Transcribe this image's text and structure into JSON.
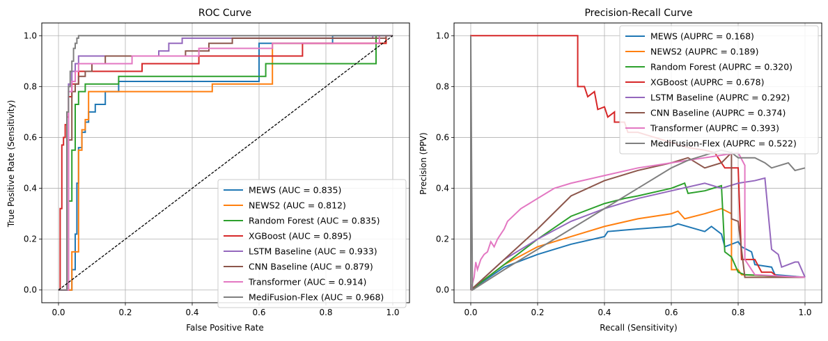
{
  "chart_data": [
    {
      "type": "line",
      "title": "ROC Curve",
      "xlabel": "False Positive Rate",
      "ylabel": "True Positive Rate (Sensitivity)",
      "xlim": [
        -0.05,
        1.05
      ],
      "ylim": [
        -0.05,
        1.05
      ],
      "xticks": [
        "0.0",
        "0.2",
        "0.4",
        "0.6",
        "0.8",
        "1.0"
      ],
      "yticks": [
        "0.0",
        "0.2",
        "0.4",
        "0.6",
        "0.8",
        "1.0"
      ],
      "grid": true,
      "legend_position": "lower-right",
      "reference_line": {
        "x": [
          0,
          1
        ],
        "y": [
          0,
          1
        ],
        "color": "#000000",
        "style": "dashed"
      },
      "series": [
        {
          "name": "MEWS (AUC = 0.835)",
          "color": "#1f77b4",
          "x": [
            0,
            0.04,
            0.04,
            0.05,
            0.05,
            0.055,
            0.055,
            0.06,
            0.06,
            0.07,
            0.07,
            0.08,
            0.08,
            0.09,
            0.09,
            0.11,
            0.11,
            0.14,
            0.14,
            0.18,
            0.18,
            0.6,
            0.6,
            0.82,
            0.82,
            1.0
          ],
          "y": [
            0,
            0,
            0.08,
            0.08,
            0.22,
            0.22,
            0.42,
            0.42,
            0.56,
            0.56,
            0.62,
            0.62,
            0.66,
            0.66,
            0.7,
            0.7,
            0.73,
            0.73,
            0.78,
            0.78,
            0.82,
            0.82,
            0.97,
            0.97,
            1.0,
            1.0
          ]
        },
        {
          "name": "NEWS2 (AUC = 0.812)",
          "color": "#ff7f0e",
          "x": [
            0,
            0.04,
            0.04,
            0.06,
            0.06,
            0.07,
            0.07,
            0.08,
            0.08,
            0.09,
            0.09,
            0.46,
            0.46,
            0.64,
            0.64,
            0.98,
            0.98,
            1.0
          ],
          "y": [
            0,
            0,
            0.15,
            0.15,
            0.55,
            0.55,
            0.63,
            0.63,
            0.67,
            0.67,
            0.78,
            0.78,
            0.81,
            0.81,
            0.97,
            0.97,
            1.0,
            1.0
          ]
        },
        {
          "name": "Random Forest (AUC = 0.835)",
          "color": "#2ca02c",
          "x": [
            0,
            0.03,
            0.03,
            0.04,
            0.04,
            0.05,
            0.05,
            0.06,
            0.06,
            0.08,
            0.08,
            0.18,
            0.18,
            0.62,
            0.62,
            0.95,
            0.95,
            1.0
          ],
          "y": [
            0,
            0,
            0.35,
            0.35,
            0.55,
            0.55,
            0.73,
            0.73,
            0.78,
            0.78,
            0.81,
            0.81,
            0.84,
            0.84,
            0.89,
            0.89,
            1.0,
            1.0
          ]
        },
        {
          "name": "XGBoost (AUC = 0.895)",
          "color": "#d62728",
          "x": [
            0,
            0.005,
            0.005,
            0.01,
            0.01,
            0.015,
            0.015,
            0.02,
            0.02,
            0.025,
            0.025,
            0.03,
            0.03,
            0.04,
            0.04,
            0.06,
            0.06,
            0.25,
            0.25,
            0.42,
            0.42,
            0.73,
            0.73,
            0.98,
            0.98,
            1.0
          ],
          "y": [
            0,
            0,
            0.32,
            0.32,
            0.57,
            0.57,
            0.6,
            0.6,
            0.65,
            0.65,
            0.68,
            0.68,
            0.76,
            0.76,
            0.81,
            0.81,
            0.86,
            0.86,
            0.89,
            0.89,
            0.92,
            0.92,
            0.97,
            0.97,
            1.0,
            1.0
          ]
        },
        {
          "name": "LSTM Baseline (AUC = 0.933)",
          "color": "#9467bd",
          "x": [
            0,
            0.03,
            0.03,
            0.04,
            0.04,
            0.05,
            0.05,
            0.06,
            0.06,
            0.3,
            0.3,
            0.33,
            0.33,
            0.37,
            0.37,
            0.94,
            0.94,
            1.0
          ],
          "y": [
            0,
            0,
            0.81,
            0.81,
            0.86,
            0.86,
            0.89,
            0.89,
            0.92,
            0.92,
            0.94,
            0.94,
            0.97,
            0.97,
            0.99,
            0.99,
            1.0,
            1.0
          ]
        },
        {
          "name": "CNN Baseline (AUC = 0.879)",
          "color": "#8c564b",
          "x": [
            0,
            0.03,
            0.03,
            0.04,
            0.04,
            0.05,
            0.05,
            0.06,
            0.06,
            0.08,
            0.08,
            0.1,
            0.1,
            0.14,
            0.14,
            0.38,
            0.38,
            0.45,
            0.45,
            0.52,
            0.52,
            0.98,
            0.98,
            1.0
          ],
          "y": [
            0,
            0,
            0.59,
            0.59,
            0.78,
            0.78,
            0.81,
            0.81,
            0.84,
            0.84,
            0.86,
            0.86,
            0.89,
            0.89,
            0.92,
            0.92,
            0.94,
            0.94,
            0.97,
            0.97,
            0.99,
            0.99,
            1.0,
            1.0
          ]
        },
        {
          "name": "Transformer (AUC = 0.914)",
          "color": "#e377c2",
          "x": [
            0,
            0.03,
            0.03,
            0.04,
            0.04,
            0.05,
            0.05,
            0.06,
            0.06,
            0.22,
            0.22,
            0.42,
            0.42,
            0.64,
            0.64,
            0.96,
            0.96,
            1.0
          ],
          "y": [
            0,
            0,
            0.78,
            0.78,
            0.82,
            0.82,
            0.86,
            0.86,
            0.89,
            0.89,
            0.92,
            0.92,
            0.95,
            0.95,
            0.97,
            0.97,
            1.0,
            1.0
          ]
        },
        {
          "name": "MediFusion-Flex (AUC = 0.968)",
          "color": "#7f7f7f",
          "x": [
            0,
            0.025,
            0.025,
            0.03,
            0.03,
            0.035,
            0.035,
            0.04,
            0.04,
            0.045,
            0.045,
            0.05,
            0.05,
            0.055,
            0.055,
            0.06,
            0.06,
            1.0
          ],
          "y": [
            0,
            0,
            0.7,
            0.7,
            0.8,
            0.8,
            0.86,
            0.86,
            0.9,
            0.9,
            0.95,
            0.95,
            0.97,
            0.97,
            0.99,
            0.99,
            1.0,
            1.0
          ]
        }
      ]
    },
    {
      "type": "line",
      "title": "Precision-Recall Curve",
      "xlabel": "Recall (Sensitivity)",
      "ylabel": "Precision (PPV)",
      "xlim": [
        -0.05,
        1.05
      ],
      "ylim": [
        -0.05,
        1.05
      ],
      "xticks": [
        "0.0",
        "0.2",
        "0.4",
        "0.6",
        "0.8",
        "1.0"
      ],
      "yticks": [
        "0.0",
        "0.2",
        "0.4",
        "0.6",
        "0.8",
        "1.0"
      ],
      "grid": true,
      "legend_position": "upper-right",
      "series": [
        {
          "name": "MEWS (AUPRC = 0.168)",
          "color": "#1f77b4",
          "x": [
            0,
            0.1,
            0.2,
            0.3,
            0.4,
            0.41,
            0.5,
            0.6,
            0.62,
            0.7,
            0.72,
            0.75,
            0.76,
            0.8,
            0.81,
            0.84,
            0.85,
            0.9,
            0.91,
            1.0,
            1.0
          ],
          "y": [
            0,
            0.09,
            0.14,
            0.18,
            0.21,
            0.23,
            0.24,
            0.25,
            0.26,
            0.23,
            0.25,
            0.22,
            0.17,
            0.19,
            0.17,
            0.15,
            0.1,
            0.09,
            0.06,
            0.05,
            0.05
          ]
        },
        {
          "name": "NEWS2 (AUPRC = 0.189)",
          "color": "#ff7f0e",
          "x": [
            0,
            0.1,
            0.2,
            0.3,
            0.4,
            0.5,
            0.6,
            0.62,
            0.64,
            0.7,
            0.75,
            0.78,
            0.78,
            0.8,
            0.81,
            1.0
          ],
          "y": [
            0,
            0.1,
            0.17,
            0.21,
            0.25,
            0.28,
            0.3,
            0.31,
            0.28,
            0.3,
            0.32,
            0.3,
            0.08,
            0.08,
            0.06,
            0.05
          ]
        },
        {
          "name": "Random Forest (AUPRC = 0.320)",
          "color": "#2ca02c",
          "x": [
            0,
            0.1,
            0.2,
            0.3,
            0.4,
            0.46,
            0.5,
            0.6,
            0.64,
            0.65,
            0.7,
            0.75,
            0.76,
            0.78,
            0.8,
            0.82,
            1.0
          ],
          "y": [
            0,
            0.1,
            0.2,
            0.29,
            0.34,
            0.36,
            0.37,
            0.4,
            0.42,
            0.38,
            0.39,
            0.41,
            0.15,
            0.13,
            0.07,
            0.06,
            0.05
          ]
        },
        {
          "name": "XGBoost (AUPRC = 0.678)",
          "color": "#d62728",
          "x": [
            0,
            0,
            0.32,
            0.32,
            0.34,
            0.35,
            0.37,
            0.38,
            0.4,
            0.41,
            0.43,
            0.43,
            0.46,
            0.47,
            0.5,
            0.55,
            0.6,
            0.65,
            0.7,
            0.73,
            0.75,
            0.76,
            0.8,
            0.81,
            0.85,
            0.87,
            0.9,
            0.92,
            1.0
          ],
          "y": [
            0,
            1.0,
            1.0,
            0.8,
            0.8,
            0.76,
            0.78,
            0.71,
            0.72,
            0.68,
            0.7,
            0.66,
            0.66,
            0.62,
            0.62,
            0.6,
            0.58,
            0.56,
            0.55,
            0.54,
            0.5,
            0.48,
            0.48,
            0.12,
            0.12,
            0.07,
            0.07,
            0.05,
            0.05
          ]
        },
        {
          "name": "LSTM Baseline (AUPRC = 0.292)",
          "color": "#9467bd",
          "x": [
            0,
            0.1,
            0.2,
            0.3,
            0.4,
            0.5,
            0.6,
            0.7,
            0.75,
            0.8,
            0.85,
            0.88,
            0.9,
            0.92,
            0.93,
            0.95,
            0.97,
            0.98,
            1.0
          ],
          "y": [
            0,
            0.12,
            0.2,
            0.27,
            0.32,
            0.36,
            0.39,
            0.42,
            0.4,
            0.42,
            0.43,
            0.44,
            0.16,
            0.14,
            0.09,
            0.1,
            0.11,
            0.11,
            0.05
          ]
        },
        {
          "name": "CNN Baseline (AUPRC = 0.374)",
          "color": "#8c564b",
          "x": [
            0,
            0.1,
            0.2,
            0.3,
            0.4,
            0.5,
            0.6,
            0.65,
            0.7,
            0.75,
            0.78,
            0.78,
            0.8,
            0.82,
            1.0
          ],
          "y": [
            0,
            0.12,
            0.24,
            0.37,
            0.43,
            0.47,
            0.5,
            0.52,
            0.48,
            0.5,
            0.54,
            0.28,
            0.27,
            0.05,
            0.05
          ]
        },
        {
          "name": "Transformer (AUPRC = 0.393)",
          "color": "#e377c2",
          "x": [
            0,
            0.01,
            0.015,
            0.02,
            0.03,
            0.04,
            0.05,
            0.06,
            0.07,
            0.08,
            0.09,
            0.1,
            0.11,
            0.15,
            0.2,
            0.25,
            0.3,
            0.4,
            0.5,
            0.6,
            0.7,
            0.75,
            0.8,
            0.82,
            0.82,
            0.85,
            1.0
          ],
          "y": [
            0,
            0.05,
            0.11,
            0.08,
            0.12,
            0.14,
            0.15,
            0.19,
            0.17,
            0.2,
            0.22,
            0.24,
            0.27,
            0.32,
            0.36,
            0.4,
            0.42,
            0.45,
            0.48,
            0.5,
            0.52,
            0.53,
            0.54,
            0.49,
            0.12,
            0.06,
            0.05
          ]
        },
        {
          "name": "MediFusion-Flex (AUPRC = 0.522)",
          "color": "#7f7f7f",
          "x": [
            0,
            0,
            0.005,
            0.1,
            0.2,
            0.3,
            0.4,
            0.5,
            0.6,
            0.65,
            0.7,
            0.75,
            0.78,
            0.8,
            0.85,
            0.88,
            0.9,
            0.95,
            0.97,
            1.0
          ],
          "y": [
            0,
            1.0,
            0,
            0.08,
            0.16,
            0.24,
            0.32,
            0.4,
            0.48,
            0.51,
            0.53,
            0.55,
            0.54,
            0.52,
            0.52,
            0.5,
            0.48,
            0.5,
            0.47,
            0.48
          ]
        }
      ]
    }
  ]
}
